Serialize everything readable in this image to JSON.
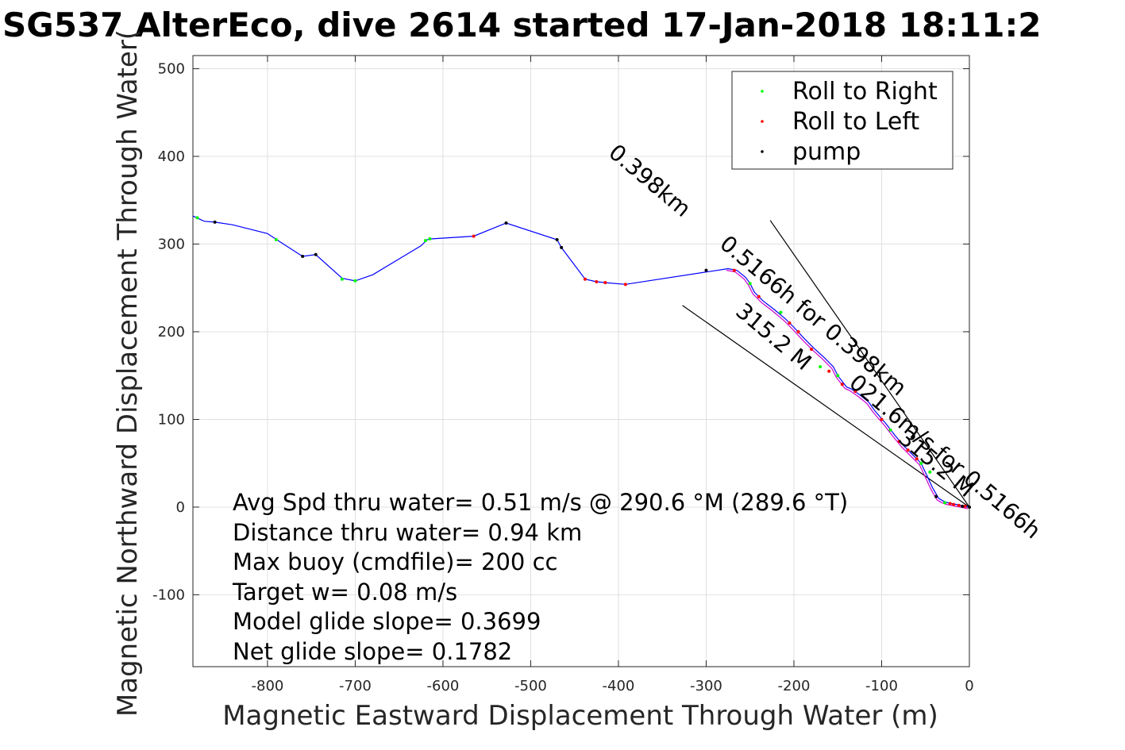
{
  "chart_data": {
    "type": "line",
    "title": "SG537 AlterEco, dive 2614 started 17-Jan-2018 18:11:2",
    "xlabel": "Magnetic Eastward Displacement Through Water (m)",
    "ylabel": "Magnetic Northward Displacement Through Water(",
    "xlim": [
      -885,
      0
    ],
    "ylim": [
      -182,
      515
    ],
    "xticks": [
      -800,
      -700,
      -600,
      -500,
      -400,
      -300,
      -200,
      -100,
      0
    ],
    "yticks": [
      -100,
      0,
      100,
      200,
      300,
      400,
      500
    ],
    "grid": true,
    "legend_position": "top-right",
    "legend": [
      {
        "label": "Roll to Right",
        "color": "#00ff00"
      },
      {
        "label": "Roll to Left",
        "color": "#ff0000"
      },
      {
        "label": "pump",
        "color": "#000000"
      }
    ],
    "track_color": "#0000ff",
    "track": {
      "x": [
        0,
        -5,
        -10,
        -15,
        -20,
        -25,
        -30,
        -35,
        -42,
        -48,
        -55,
        -65,
        -75,
        -85,
        -95,
        -108,
        -115,
        -125,
        -135,
        -140,
        -150,
        -155,
        -165,
        -178,
        -188,
        -200,
        -210,
        -222,
        -235,
        -245,
        -250,
        -255,
        -265,
        -275,
        -392,
        -415,
        -425,
        -438,
        -465,
        -470,
        -528,
        -565,
        -612,
        -618,
        -625,
        -680,
        -700,
        -705,
        -715,
        -745,
        -760,
        -785,
        -800,
        -840,
        -860,
        -872,
        -885
      ],
      "y": [
        0,
        1,
        2,
        3,
        4,
        5,
        7,
        10,
        22,
        35,
        50,
        60,
        70,
        82,
        95,
        110,
        120,
        128,
        135,
        137,
        150,
        160,
        170,
        182,
        192,
        205,
        215,
        225,
        235,
        245,
        255,
        262,
        270,
        272,
        254,
        256,
        257,
        260,
        296,
        305,
        324,
        309,
        306,
        305,
        298,
        265,
        258,
        259,
        261,
        288,
        286,
        302,
        312,
        322,
        325,
        326,
        332
      ]
    },
    "roll_right": {
      "x": [
        -28,
        -45,
        -55,
        -90,
        -150,
        -170,
        -215,
        -250,
        -615,
        -620,
        -700,
        -715,
        -790,
        -880
      ],
      "y": [
        5,
        40,
        50,
        88,
        150,
        160,
        222,
        255,
        306,
        304,
        258,
        260,
        305,
        330
      ]
    },
    "roll_left": {
      "x": [
        -5,
        -12,
        -18,
        -22,
        -60,
        -70,
        -80,
        -100,
        -130,
        -145,
        -160,
        -180,
        -195,
        -205,
        -240,
        -268,
        -392,
        -415,
        -425,
        -438,
        -565
      ],
      "y": [
        1,
        2,
        3,
        4,
        55,
        65,
        75,
        100,
        132,
        140,
        155,
        180,
        200,
        210,
        240,
        270,
        254,
        256,
        257,
        260,
        309
      ]
    },
    "pump": {
      "x": [
        0,
        -8,
        -38,
        -300,
        -470,
        -465,
        -528,
        -745,
        -760,
        -860
      ],
      "y": [
        0,
        1,
        12,
        270,
        305,
        296,
        324,
        288,
        286,
        325
      ]
    },
    "bearing_lines": [
      {
        "x": [
          0,
          -227
        ],
        "y": [
          0,
          327
        ]
      },
      {
        "x": [
          0,
          -327
        ],
        "y": [
          0,
          230
        ]
      }
    ],
    "rotated_labels": [
      {
        "text": "0.398km",
        "angle": 220
      },
      {
        "text": "0.5166h",
        "angle": 220
      },
      {
        "text": "0.5166h for 0.398km",
        "angle": 220
      },
      {
        "text": "315.2 M",
        "angle": 220
      }
    ],
    "annotations": [
      "Avg Spd thru water=  0.51 m/s @ 290.6 °M (289.6 °T)",
      "Distance thru water=  0.94 km",
      "Max buoy (cmdfile)= 200 cc",
      "Target w= 0.08 m/s",
      "Model glide slope= 0.3699",
      "Net glide slope= 0.1782"
    ],
    "rotated_text_lines": [
      "0.398km",
      "0.5166h for 0.398km",
      "315.2 M",
      "021.6m/s for 0.5166h",
      "315.2 M"
    ]
  }
}
